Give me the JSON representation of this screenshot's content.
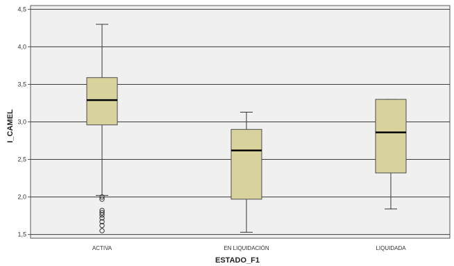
{
  "chart_data": {
    "type": "boxplot",
    "title": "",
    "xlabel": "ESTADO_F1",
    "ylabel": "I_CAMEL",
    "ylim": [
      1.45,
      4.55
    ],
    "y_ticks": [
      "1,5",
      "2,0",
      "2,5",
      "3,0",
      "3,5",
      "4,0",
      "4,5"
    ],
    "y_tick_values": [
      1.5,
      2.0,
      2.5,
      3.0,
      3.5,
      4.0,
      4.5
    ],
    "grid": true,
    "colors": {
      "plot_background": "#f0f0f0",
      "box_fill": "#d8d29c",
      "box_stroke": "#4a4a4a",
      "median": "#000000",
      "whisker": "#333333",
      "gridline": "#3a3a3a"
    },
    "categories": [
      "ACTIVA",
      "EN LIQUIDACIÓN",
      "LIQUIDADA"
    ],
    "boxes": [
      {
        "category": "ACTIVA",
        "whisker_low": 2.02,
        "q1": 2.96,
        "median": 3.29,
        "q3": 3.59,
        "whisker_high": 4.3,
        "outliers": [
          2.0,
          1.97,
          1.82,
          1.79,
          1.76,
          1.72,
          1.67,
          1.62,
          1.55
        ]
      },
      {
        "category": "EN LIQUIDACIÓN",
        "whisker_low": 1.53,
        "q1": 1.97,
        "median": 2.62,
        "q3": 2.9,
        "whisker_high": 3.13,
        "outliers": []
      },
      {
        "category": "LIQUIDADA",
        "whisker_low": 1.84,
        "q1": 2.32,
        "median": 2.86,
        "q3": 3.3,
        "whisker_high": 3.3,
        "outliers": []
      }
    ]
  }
}
